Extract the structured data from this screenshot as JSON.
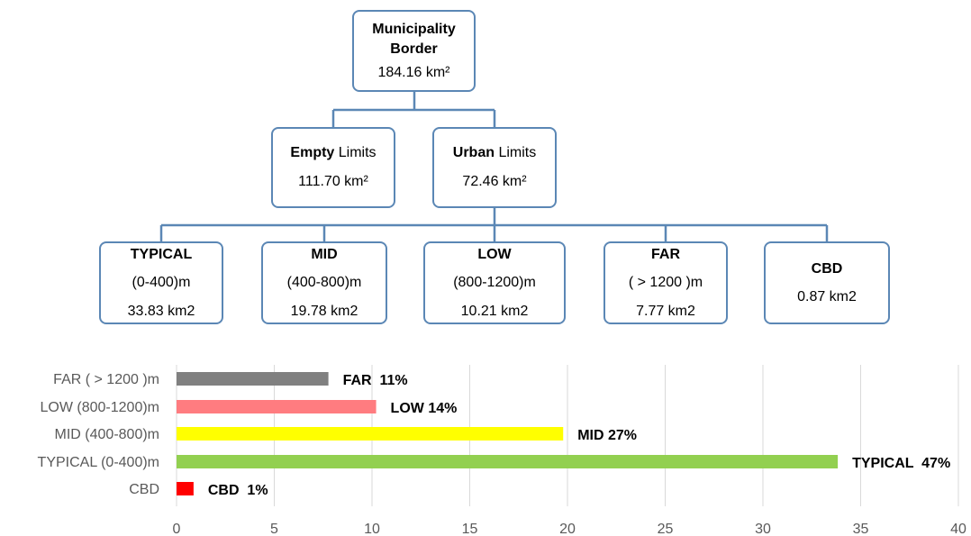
{
  "diagram": {
    "root": {
      "title_line1": "Municipality",
      "title_line2": "Border",
      "value": "184.16 km²"
    },
    "empty": {
      "bold": "Empty",
      "rest": " Limits",
      "value": "111.70 km²"
    },
    "urban": {
      "bold": "Urban",
      "rest": " Limits",
      "value": "72.46 km²"
    },
    "zones": [
      {
        "title": "TYPICAL",
        "range": "(0-400)m",
        "area": "33.83 km2"
      },
      {
        "title": "MID",
        "range": "(400-800)m",
        "area": "19.78 km2"
      },
      {
        "title": "LOW",
        "range": "(800-1200)m",
        "area": "10.21 km2"
      },
      {
        "title": "FAR",
        "range": "( > 1200 )m",
        "area": "7.77 km2"
      },
      {
        "title": "CBD",
        "area": "0.87 km2"
      }
    ],
    "line_color": "#5b87b5"
  },
  "chart_data": {
    "type": "bar",
    "orientation": "horizontal",
    "categories": [
      "FAR ( > 1200 )m",
      "LOW (800-1200)m",
      "MID (400-800)m",
      "TYPICAL (0-400)m",
      "CBD"
    ],
    "values": [
      7.77,
      10.21,
      19.78,
      33.83,
      0.87
    ],
    "data_labels": [
      "FAR  11%",
      "LOW 14%",
      "MID 27%",
      "TYPICAL  47%",
      "CBD  1%"
    ],
    "colors": [
      "#808080",
      "#ff7c80",
      "#ffff00",
      "#92d050",
      "#ff0000"
    ],
    "xlim": [
      0,
      40
    ],
    "xticks": [
      0,
      5,
      10,
      15,
      20,
      25,
      30,
      35,
      40
    ],
    "grid": true,
    "title": "",
    "xlabel": "",
    "ylabel": ""
  }
}
